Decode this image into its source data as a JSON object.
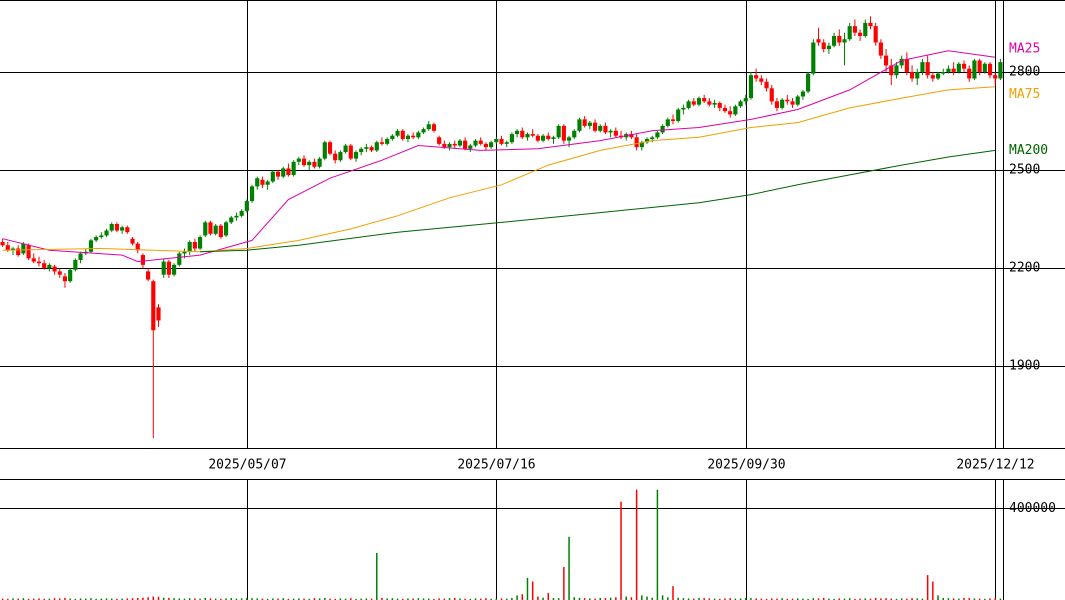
{
  "chart_data": {
    "type": "candlestick",
    "up_color": "#008000",
    "down_color": "#ff0000",
    "xlim": [
      -0.5,
      192.5
    ],
    "xticks": [
      {
        "value": 47,
        "label": "2025/05/07"
      },
      {
        "value": 95,
        "label": "2025/07/16"
      },
      {
        "value": 143,
        "label": "2025/09/30"
      },
      {
        "value": 191,
        "label": "2025/12/12"
      }
    ],
    "ylim": [
      1650,
      3020
    ],
    "yticks": [
      1900,
      2200,
      2500,
      2800
    ],
    "grid": true,
    "ohlc": [
      [
        2280,
        2290,
        2265,
        2270
      ],
      [
        2270,
        2280,
        2250,
        2255
      ],
      [
        2255,
        2265,
        2240,
        2260
      ],
      [
        2260,
        2270,
        2235,
        2240
      ],
      [
        2245,
        2280,
        2240,
        2275
      ],
      [
        2270,
        2275,
        2225,
        2230
      ],
      [
        2230,
        2245,
        2215,
        2220
      ],
      [
        2220,
        2235,
        2205,
        2215
      ],
      [
        2215,
        2225,
        2195,
        2200
      ],
      [
        2200,
        2215,
        2190,
        2210
      ],
      [
        2205,
        2210,
        2180,
        2190
      ],
      [
        2190,
        2200,
        2170,
        2180
      ],
      [
        2175,
        2185,
        2140,
        2160
      ],
      [
        2160,
        2200,
        2155,
        2195
      ],
      [
        2195,
        2230,
        2190,
        2225
      ],
      [
        2225,
        2250,
        2215,
        2245
      ],
      [
        2245,
        2260,
        2240,
        2250
      ],
      [
        2250,
        2290,
        2245,
        2285
      ],
      [
        2285,
        2300,
        2280,
        2295
      ],
      [
        2295,
        2310,
        2290,
        2300
      ],
      [
        2300,
        2320,
        2295,
        2315
      ],
      [
        2315,
        2340,
        2310,
        2335
      ],
      [
        2335,
        2340,
        2310,
        2315
      ],
      [
        2315,
        2330,
        2305,
        2325
      ],
      [
        2325,
        2330,
        2305,
        2310
      ],
      [
        2290,
        2295,
        2270,
        2275
      ],
      [
        2275,
        2280,
        2245,
        2255
      ],
      [
        2240,
        2245,
        2200,
        2210
      ],
      [
        2190,
        2200,
        2160,
        2165
      ],
      [
        2160,
        2165,
        1680,
        2010
      ],
      [
        2080,
        2090,
        2020,
        2040
      ],
      [
        2180,
        2230,
        2170,
        2220
      ],
      [
        2220,
        2225,
        2170,
        2180
      ],
      [
        2180,
        2215,
        2175,
        2210
      ],
      [
        2210,
        2250,
        2205,
        2245
      ],
      [
        2245,
        2260,
        2230,
        2250
      ],
      [
        2250,
        2285,
        2240,
        2280
      ],
      [
        2280,
        2290,
        2250,
        2260
      ],
      [
        2260,
        2300,
        2255,
        2295
      ],
      [
        2300,
        2345,
        2295,
        2340
      ],
      [
        2340,
        2345,
        2300,
        2305
      ],
      [
        2305,
        2335,
        2300,
        2330
      ],
      [
        2330,
        2335,
        2290,
        2295
      ],
      [
        2300,
        2345,
        2295,
        2340
      ],
      [
        2340,
        2360,
        2335,
        2355
      ],
      [
        2355,
        2370,
        2345,
        2360
      ],
      [
        2360,
        2380,
        2355,
        2375
      ],
      [
        2375,
        2410,
        2370,
        2405
      ],
      [
        2405,
        2455,
        2400,
        2450
      ],
      [
        2450,
        2480,
        2440,
        2475
      ],
      [
        2470,
        2480,
        2445,
        2455
      ],
      [
        2455,
        2470,
        2440,
        2465
      ],
      [
        2465,
        2500,
        2460,
        2495
      ],
      [
        2495,
        2500,
        2470,
        2480
      ],
      [
        2480,
        2510,
        2475,
        2505
      ],
      [
        2505,
        2520,
        2480,
        2485
      ],
      [
        2485,
        2530,
        2480,
        2525
      ],
      [
        2525,
        2540,
        2515,
        2535
      ],
      [
        2535,
        2545,
        2510,
        2515
      ],
      [
        2515,
        2530,
        2500,
        2525
      ],
      [
        2525,
        2535,
        2505,
        2510
      ],
      [
        2510,
        2540,
        2505,
        2535
      ],
      [
        2535,
        2590,
        2530,
        2585
      ],
      [
        2585,
        2590,
        2545,
        2550
      ],
      [
        2550,
        2560,
        2520,
        2530
      ],
      [
        2530,
        2560,
        2525,
        2555
      ],
      [
        2555,
        2580,
        2550,
        2575
      ],
      [
        2575,
        2580,
        2530,
        2535
      ],
      [
        2535,
        2560,
        2525,
        2555
      ],
      [
        2555,
        2570,
        2545,
        2565
      ],
      [
        2565,
        2580,
        2555,
        2570
      ],
      [
        2570,
        2575,
        2555,
        2560
      ],
      [
        2560,
        2590,
        2555,
        2585
      ],
      [
        2585,
        2600,
        2575,
        2580
      ],
      [
        2580,
        2600,
        2575,
        2595
      ],
      [
        2595,
        2610,
        2590,
        2605
      ],
      [
        2605,
        2625,
        2600,
        2620
      ],
      [
        2620,
        2625,
        2590,
        2595
      ],
      [
        2595,
        2610,
        2585,
        2605
      ],
      [
        2605,
        2615,
        2595,
        2600
      ],
      [
        2600,
        2620,
        2595,
        2615
      ],
      [
        2615,
        2630,
        2610,
        2625
      ],
      [
        2625,
        2650,
        2620,
        2640
      ],
      [
        2640,
        2645,
        2615,
        2620
      ],
      [
        2600,
        2605,
        2575,
        2580
      ],
      [
        2580,
        2590,
        2565,
        2570
      ],
      [
        2570,
        2585,
        2560,
        2580
      ],
      [
        2580,
        2590,
        2565,
        2575
      ],
      [
        2575,
        2595,
        2570,
        2590
      ],
      [
        2590,
        2600,
        2560,
        2565
      ],
      [
        2565,
        2580,
        2555,
        2575
      ],
      [
        2575,
        2595,
        2570,
        2590
      ],
      [
        2590,
        2600,
        2575,
        2580
      ],
      [
        2580,
        2585,
        2560,
        2570
      ],
      [
        2570,
        2590,
        2565,
        2585
      ],
      [
        2585,
        2600,
        2580,
        2595
      ],
      [
        2595,
        2605,
        2575,
        2580
      ],
      [
        2580,
        2590,
        2570,
        2585
      ],
      [
        2585,
        2615,
        2580,
        2610
      ],
      [
        2610,
        2625,
        2600,
        2620
      ],
      [
        2620,
        2630,
        2595,
        2600
      ],
      [
        2600,
        2615,
        2590,
        2610
      ],
      [
        2610,
        2625,
        2600,
        2605
      ],
      [
        2605,
        2610,
        2585,
        2590
      ],
      [
        2590,
        2610,
        2585,
        2605
      ],
      [
        2605,
        2615,
        2590,
        2595
      ],
      [
        2595,
        2605,
        2580,
        2600
      ],
      [
        2600,
        2640,
        2595,
        2635
      ],
      [
        2635,
        2640,
        2580,
        2590
      ],
      [
        2590,
        2605,
        2570,
        2600
      ],
      [
        2600,
        2625,
        2595,
        2620
      ],
      [
        2620,
        2660,
        2615,
        2655
      ],
      [
        2655,
        2665,
        2630,
        2635
      ],
      [
        2635,
        2650,
        2625,
        2645
      ],
      [
        2645,
        2655,
        2615,
        2620
      ],
      [
        2620,
        2640,
        2615,
        2635
      ],
      [
        2635,
        2645,
        2610,
        2615
      ],
      [
        2615,
        2625,
        2600,
        2620
      ],
      [
        2620,
        2630,
        2600,
        2605
      ],
      [
        2605,
        2620,
        2595,
        2600
      ],
      [
        2600,
        2615,
        2590,
        2610
      ],
      [
        2610,
        2620,
        2595,
        2600
      ],
      [
        2600,
        2610,
        2560,
        2570
      ],
      [
        2570,
        2590,
        2560,
        2585
      ],
      [
        2585,
        2600,
        2580,
        2595
      ],
      [
        2595,
        2605,
        2585,
        2600
      ],
      [
        2600,
        2620,
        2595,
        2615
      ],
      [
        2615,
        2640,
        2610,
        2635
      ],
      [
        2635,
        2660,
        2630,
        2655
      ],
      [
        2655,
        2670,
        2640,
        2650
      ],
      [
        2650,
        2690,
        2645,
        2685
      ],
      [
        2685,
        2700,
        2670,
        2690
      ],
      [
        2690,
        2715,
        2685,
        2710
      ],
      [
        2710,
        2720,
        2695,
        2700
      ],
      [
        2700,
        2725,
        2695,
        2720
      ],
      [
        2720,
        2730,
        2705,
        2710
      ],
      [
        2710,
        2720,
        2695,
        2700
      ],
      [
        2700,
        2715,
        2690,
        2705
      ],
      [
        2705,
        2710,
        2680,
        2690
      ],
      [
        2690,
        2700,
        2675,
        2680
      ],
      [
        2680,
        2695,
        2660,
        2670
      ],
      [
        2670,
        2700,
        2665,
        2695
      ],
      [
        2695,
        2715,
        2690,
        2710
      ],
      [
        2710,
        2730,
        2700,
        2720
      ],
      [
        2720,
        2800,
        2715,
        2790
      ],
      [
        2790,
        2810,
        2770,
        2780
      ],
      [
        2780,
        2790,
        2760,
        2770
      ],
      [
        2770,
        2780,
        2740,
        2750
      ],
      [
        2750,
        2760,
        2700,
        2710
      ],
      [
        2710,
        2720,
        2680,
        2690
      ],
      [
        2690,
        2720,
        2685,
        2715
      ],
      [
        2715,
        2730,
        2700,
        2710
      ],
      [
        2710,
        2720,
        2690,
        2700
      ],
      [
        2700,
        2730,
        2695,
        2725
      ],
      [
        2725,
        2745,
        2715,
        2740
      ],
      [
        2740,
        2800,
        2735,
        2795
      ],
      [
        2795,
        2900,
        2790,
        2890
      ],
      [
        2900,
        2935,
        2880,
        2890
      ],
      [
        2890,
        2900,
        2860,
        2870
      ],
      [
        2870,
        2890,
        2855,
        2880
      ],
      [
        2880,
        2920,
        2875,
        2910
      ],
      [
        2910,
        2930,
        2880,
        2890
      ],
      [
        2890,
        2920,
        2820,
        2900
      ],
      [
        2900,
        2950,
        2895,
        2940
      ],
      [
        2940,
        2960,
        2910,
        2920
      ],
      [
        2920,
        2930,
        2895,
        2910
      ],
      [
        2910,
        2960,
        2905,
        2950
      ],
      [
        2950,
        2970,
        2930,
        2940
      ],
      [
        2940,
        2950,
        2880,
        2890
      ],
      [
        2890,
        2900,
        2840,
        2850
      ],
      [
        2850,
        2870,
        2800,
        2820
      ],
      [
        2820,
        2840,
        2760,
        2790
      ],
      [
        2790,
        2830,
        2780,
        2820
      ],
      [
        2820,
        2850,
        2810,
        2840
      ],
      [
        2840,
        2860,
        2790,
        2800
      ],
      [
        2800,
        2820,
        2770,
        2780
      ],
      [
        2780,
        2810,
        2760,
        2800
      ],
      [
        2800,
        2840,
        2790,
        2830
      ],
      [
        2830,
        2850,
        2780,
        2790
      ],
      [
        2790,
        2800,
        2770,
        2780
      ],
      [
        2780,
        2800,
        2775,
        2795
      ],
      [
        2795,
        2810,
        2790,
        2800
      ],
      [
        2800,
        2820,
        2795,
        2810
      ],
      [
        2810,
        2830,
        2790,
        2800
      ],
      [
        2800,
        2830,
        2795,
        2825
      ],
      [
        2825,
        2835,
        2800,
        2810
      ],
      [
        2810,
        2820,
        2770,
        2780
      ],
      [
        2780,
        2840,
        2775,
        2835
      ],
      [
        2835,
        2840,
        2790,
        2800
      ],
      [
        2800,
        2830,
        2795,
        2825
      ],
      [
        2825,
        2830,
        2780,
        2790
      ],
      [
        2790,
        2800,
        2760,
        2780
      ],
      [
        2780,
        2840,
        2775,
        2830
      ]
    ],
    "volume": [
      6000,
      5000,
      7000,
      6000,
      8000,
      5000,
      6000,
      7000,
      5000,
      6000,
      8000,
      7000,
      9000,
      6000,
      5000,
      7000,
      6000,
      8000,
      5000,
      6000,
      7000,
      6000,
      5000,
      6000,
      7000,
      8000,
      9000,
      10000,
      12000,
      15000,
      14000,
      10000,
      9000,
      8000,
      7000,
      6000,
      8000,
      7000,
      6000,
      9000,
      7000,
      6000,
      5000,
      7000,
      8000,
      6000,
      7000,
      9000,
      8000,
      7000,
      6000,
      5000,
      7000,
      6000,
      8000,
      5000,
      6000,
      7000,
      6000,
      5000,
      8000,
      7000,
      9000,
      6000,
      5000,
      7000,
      6000,
      8000,
      5000,
      6000,
      7000,
      6000,
      204000,
      9000,
      7000,
      8000,
      6000,
      5000,
      7000,
      6000,
      8000,
      7000,
      6000,
      5000,
      7000,
      6000,
      8000,
      9000,
      7000,
      6000,
      5000,
      7000,
      6000,
      8000,
      5000,
      6000,
      7000,
      6000,
      9000,
      20000,
      25000,
      96000,
      80000,
      15000,
      10000,
      30000,
      9000,
      8000,
      143000,
      274000,
      12000,
      9000,
      8000,
      7000,
      6000,
      9000,
      8000,
      10000,
      12000,
      426000,
      15000,
      12000,
      478000,
      20000,
      15000,
      10000,
      478000,
      20000,
      12000,
      60000,
      10000,
      8000,
      7000,
      6000,
      9000,
      8000,
      7000,
      6000,
      5000,
      7000,
      8000,
      6000,
      7000,
      9000,
      8000,
      7000,
      6000,
      5000,
      7000,
      6000,
      8000,
      5000,
      6000,
      7000,
      6000,
      5000,
      8000,
      7000,
      9000,
      6000,
      5000,
      7000,
      6000,
      8000,
      5000,
      6000,
      7000,
      6000,
      9000,
      7000,
      8000,
      6000,
      5000,
      7000,
      6000,
      8000,
      7000,
      6000,
      108000,
      80000,
      20000,
      9000,
      8000,
      7000,
      6000,
      9000,
      8000,
      7000,
      6000,
      5000,
      7000,
      8000,
      6000
    ],
    "vlim": [
      0,
      520000
    ],
    "vticks": [
      400000
    ],
    "moving_averages": [
      {
        "name": "MA25",
        "color": "#dd00aa",
        "x": [
          0,
          9,
          23,
          26,
          38,
          48,
          55,
          63,
          73,
          80,
          92,
          103,
          115,
          125,
          134,
          144,
          153,
          163,
          173,
          182,
          191
        ],
        "values": [
          2290,
          2255,
          2240,
          2220,
          2240,
          2285,
          2410,
          2475,
          2530,
          2575,
          2560,
          2565,
          2590,
          2620,
          2630,
          2655,
          2685,
          2745,
          2835,
          2865,
          2845
        ]
      },
      {
        "name": "MA75",
        "color": "#f0a000",
        "x": [
          0,
          19,
          38,
          47,
          57,
          67,
          76,
          86,
          96,
          105,
          115,
          125,
          134,
          144,
          153,
          163,
          173,
          182,
          191
        ],
        "values": [
          2255,
          2260,
          2250,
          2260,
          2285,
          2320,
          2360,
          2415,
          2455,
          2515,
          2560,
          2590,
          2600,
          2630,
          2645,
          2690,
          2720,
          2745,
          2755
        ]
      },
      {
        "name": "MA200",
        "color": "#006400",
        "x": [
          38,
          47,
          57,
          76,
          96,
          115,
          134,
          144,
          153,
          163,
          173,
          182,
          191
        ],
        "values": [
          2250,
          2255,
          2270,
          2310,
          2340,
          2370,
          2400,
          2425,
          2455,
          2485,
          2515,
          2540,
          2560
        ]
      }
    ]
  }
}
